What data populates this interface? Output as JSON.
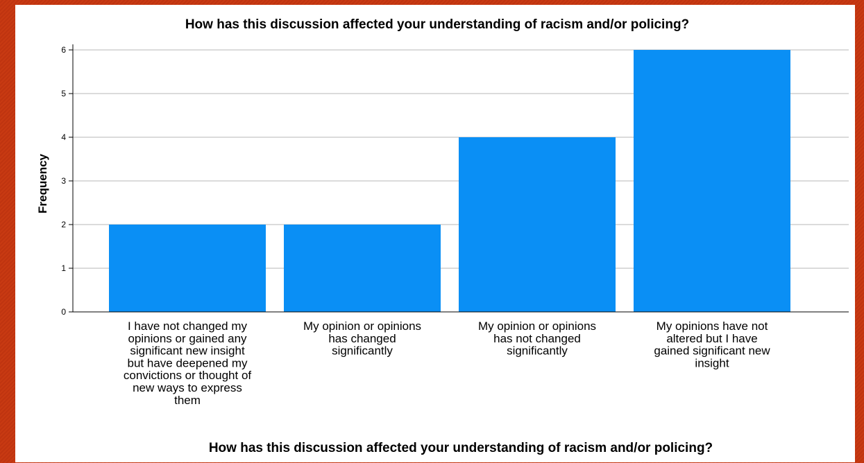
{
  "chart_data": {
    "type": "bar",
    "title": "How has this discussion affected your understanding of racism and/or policing?",
    "xlabel": "How has this discussion affected your understanding of racism and/or policing?",
    "ylabel": "Frequency",
    "categories": [
      [
        "I have not changed my",
        "opinions or gained any",
        "significant new insight",
        "but have deepened my",
        "convictions or thought of",
        "new ways to express",
        "them"
      ],
      [
        "My opinion or opinions",
        "has changed",
        "significantly"
      ],
      [
        "My opinion or opinions",
        "has not changed",
        "significantly"
      ],
      [
        "My opinions have not",
        "altered but I have",
        "gained significant new",
        "insight"
      ]
    ],
    "values": [
      2,
      2,
      4,
      6
    ],
    "ylim": [
      0,
      6
    ],
    "yticks": [
      "0",
      "1",
      "2",
      "3",
      "4",
      "5",
      "6"
    ],
    "grid": true,
    "legend": "none",
    "bar_color": "#0a8ff5",
    "grid_color": "#cfcfcf"
  }
}
